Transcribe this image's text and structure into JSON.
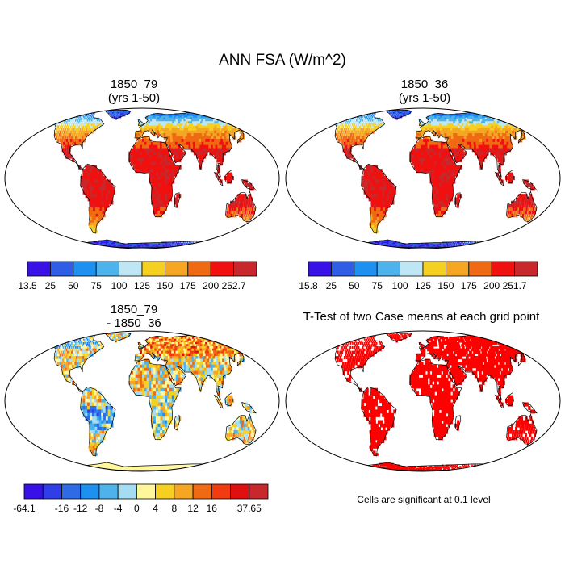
{
  "title": "ANN FSA (W/m^2)",
  "panels": [
    {
      "id": "p1",
      "title_line1": "1850_79",
      "title_line2": "(yrs 1-50)",
      "field": "case-mean",
      "colorbar": {
        "labels": [
          "13.5",
          "25",
          "50",
          "75",
          "100",
          "125",
          "150",
          "175",
          "200",
          "252.7"
        ],
        "colors": [
          "#3a10e8",
          "#2f5de6",
          "#1e90f0",
          "#4db3ea",
          "#bfe6f4",
          "#f5d020",
          "#f5a623",
          "#ef6a12",
          "#f01010",
          "#c8282c"
        ]
      }
    },
    {
      "id": "p2",
      "title_line1": "1850_36",
      "title_line2": "(yrs 1-50)",
      "field": "case-mean",
      "colorbar": {
        "labels": [
          "15.8",
          "25",
          "50",
          "75",
          "100",
          "125",
          "150",
          "175",
          "200",
          "251.7"
        ],
        "colors": [
          "#3a10e8",
          "#2f5de6",
          "#1e90f0",
          "#4db3ea",
          "#bfe6f4",
          "#f5d020",
          "#f5a623",
          "#ef6a12",
          "#f01010",
          "#c8282c"
        ]
      }
    },
    {
      "id": "p3",
      "title_line1": "1850_79",
      "title_line2": "- 1850_36",
      "field": "difference",
      "colorbar": {
        "labels": [
          "-64.1",
          "",
          "-16",
          "-12",
          "-8",
          "-4",
          "0",
          "4",
          "8",
          "12",
          "16",
          "",
          "37.65"
        ],
        "colors": [
          "#3a10e8",
          "#2f3ee6",
          "#2f6be6",
          "#1e90f0",
          "#4db3ea",
          "#a5dcf2",
          "#fff79a",
          "#f5d020",
          "#f5a623",
          "#ef6a12",
          "#f03c10",
          "#e01010",
          "#c8282c"
        ]
      }
    },
    {
      "id": "p4",
      "title_line1": "T-Test of two Case means at each grid point",
      "title_line2": "",
      "field": "significance",
      "note": "Cells are significant at 0.1 level",
      "color": "#ff0000"
    }
  ]
}
